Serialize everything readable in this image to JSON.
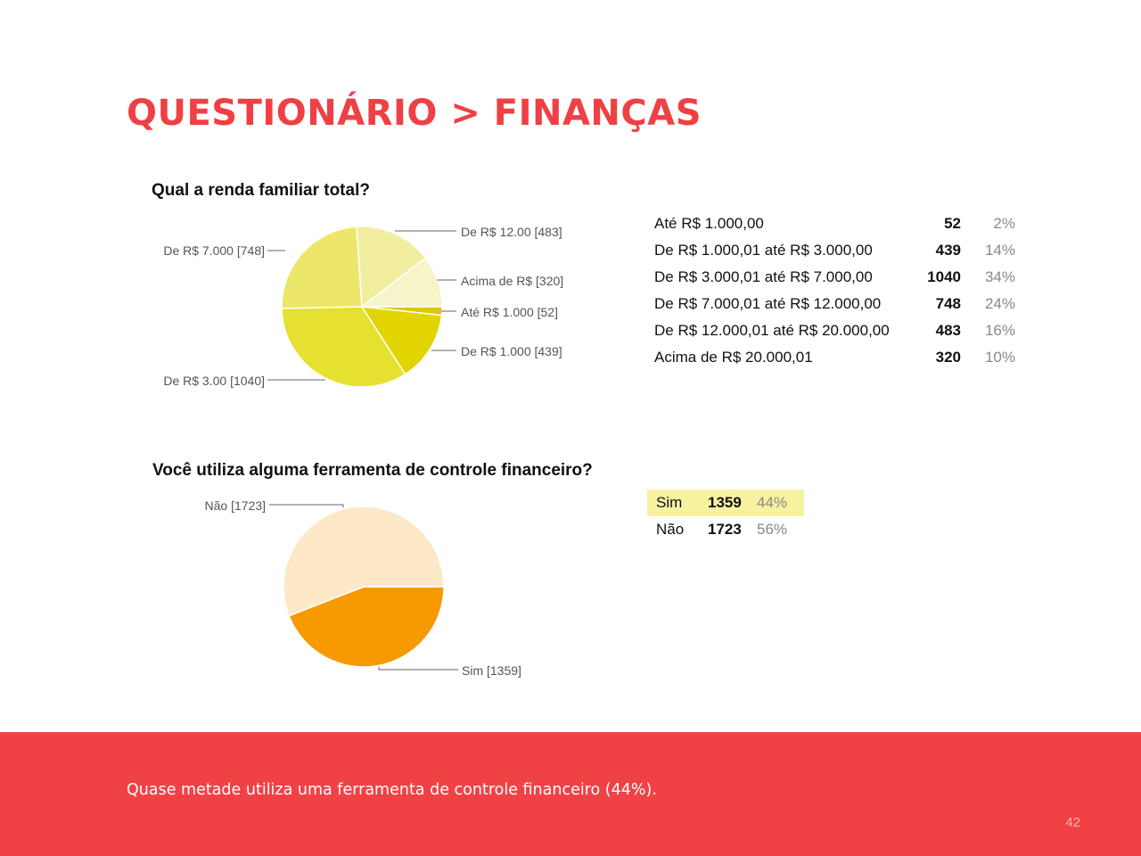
{
  "slide": {
    "title": "Questionário > Finanças",
    "footer_text": "Quase metade utiliza uma ferramenta de controle financeiro (44%).",
    "page_number": "42"
  },
  "chart_data": [
    {
      "type": "pie",
      "title": "Qual a renda familiar total?",
      "slices": [
        {
          "label": "Até R$ 1.000 [52]",
          "value": 52,
          "color": "#d8c800"
        },
        {
          "label": "De R$ 1.000 [439]",
          "value": 439,
          "color": "#e2d400"
        },
        {
          "label": "De R$ 3.00 [1040]",
          "value": 1040,
          "color": "#e6e030"
        },
        {
          "label": "De R$ 7.000 [748]",
          "value": 748,
          "color": "#ece76a"
        },
        {
          "label": "De R$ 12.00 [483]",
          "value": 483,
          "color": "#f1eea0"
        },
        {
          "label": "Acima de R$ [320]",
          "value": 320,
          "color": "#f6f4c9"
        }
      ],
      "table": [
        {
          "label": "Até R$ 1.000,00",
          "count": "52",
          "percent": "2%"
        },
        {
          "label": "De R$ 1.000,01 até R$ 3.000,00",
          "count": "439",
          "percent": "14%"
        },
        {
          "label": "De R$ 3.000,01 até R$ 7.000,00",
          "count": "1040",
          "percent": "34%"
        },
        {
          "label": "De R$ 7.000,01 até R$ 12.000,00",
          "count": "748",
          "percent": "24%"
        },
        {
          "label": "De R$ 12.000,01 até R$ 20.000,00",
          "count": "483",
          "percent": "16%"
        },
        {
          "label": "Acima de R$ 20.000,01",
          "count": "320",
          "percent": "10%"
        }
      ]
    },
    {
      "type": "pie",
      "title": "Você utiliza alguma ferramenta de controle financeiro?",
      "slices": [
        {
          "label": "Sim [1359]",
          "value": 1359,
          "color": "#f79a00"
        },
        {
          "label": "Não [1723]",
          "value": 1723,
          "color": "#fde8c8"
        }
      ],
      "table": [
        {
          "label": "Sim",
          "count": "1359",
          "percent": "44%",
          "highlight": true
        },
        {
          "label": "Não",
          "count": "1723",
          "percent": "56%",
          "highlight": false
        }
      ]
    }
  ]
}
